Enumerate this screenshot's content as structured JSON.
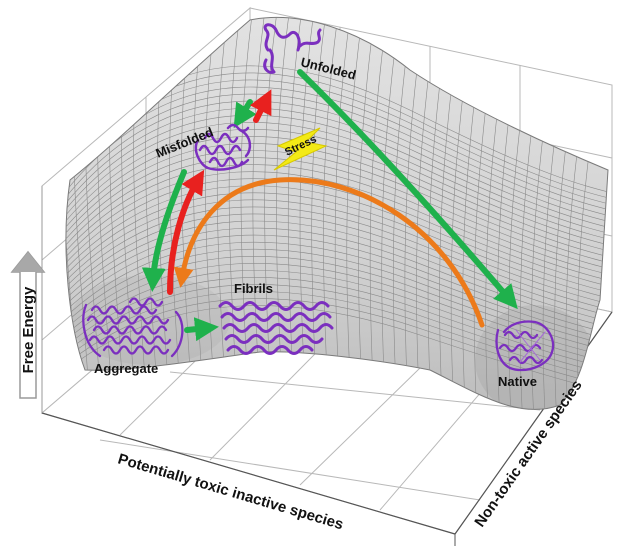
{
  "labels": {
    "unfolded": "Unfolded",
    "misfolded": "Misfolded",
    "stress": "Stress",
    "fibrils": "Fibrils",
    "aggregate": "Aggregate",
    "native": "Native"
  },
  "axes": {
    "vertical": "Free Energy",
    "bottom": "Potentially toxic inactive species",
    "right": "Non-toxic active species"
  },
  "colors": {
    "surface": "#d6d6d6",
    "mesh": "#8a8a8a",
    "green_arrow": "#1fb14c",
    "red_arrow": "#e8211f",
    "orange_arrow": "#ec7a1a",
    "protein": "#7b2fbf",
    "stress_bolt": "#f3ea16",
    "box_lines": "#b8b8b8"
  },
  "icons": {
    "unfolded_protein": "unfolded-chain-icon",
    "misfolded_protein": "misfolded-protein-icon",
    "aggregate": "aggregate-icon",
    "fibrils": "fibrils-icon",
    "native_protein": "native-protein-icon",
    "stress": "lightning-bolt-icon"
  }
}
